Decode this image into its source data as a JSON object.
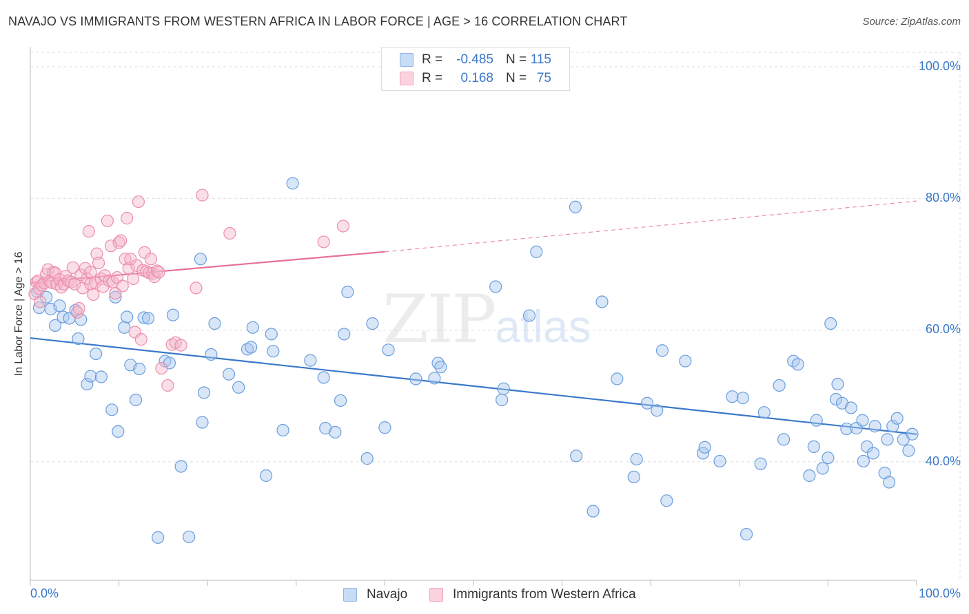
{
  "header": {
    "title": "NAVAJO VS IMMIGRANTS FROM WESTERN AFRICA IN LABOR FORCE | AGE > 16 CORRELATION CHART",
    "source": "Source: ZipAtlas.com"
  },
  "watermark": {
    "zip": "ZIP",
    "atlas": "atlas"
  },
  "stats": {
    "rows": [
      {
        "r_label": "R =",
        "r_value": "-0.485",
        "n_label": "N =",
        "n_value": "115",
        "color": "#a9c8ee"
      },
      {
        "r_label": "R =",
        "r_value": "0.168",
        "n_label": "N =",
        "n_value": "75",
        "color": "#f5b8cb"
      }
    ]
  },
  "legend": {
    "items": [
      {
        "label": "Navajo",
        "color": "#a9c8ee"
      },
      {
        "label": "Immigrants from Western Africa",
        "color": "#f5b8cb"
      }
    ]
  },
  "colors": {
    "blue": "#3a78c9",
    "blue_fill": "#a9c8ee",
    "pink": "#e8709a",
    "pink_fill": "#f5b8cb",
    "accent_text": "#3a78c9"
  },
  "chart_data": {
    "type": "scatter",
    "title": "NAVAJO VS IMMIGRANTS FROM WESTERN AFRICA IN LABOR FORCE | AGE > 16 CORRELATION CHART",
    "xlabel": "",
    "ylabel": "In Labor Force | Age > 16",
    "xlim": [
      0,
      100
    ],
    "ylim": [
      20,
      102
    ],
    "x_tick_labels": [
      "0.0%",
      "100.0%"
    ],
    "y_ticks": [
      40,
      60,
      80,
      100
    ],
    "y_tick_labels": [
      "40.0%",
      "60.0%",
      "80.0%",
      "100.0%"
    ],
    "grid": true,
    "series": [
      {
        "name": "Navajo",
        "color": "#3a78c9",
        "trend": {
          "x": [
            0,
            100
          ],
          "y": [
            58.8,
            44.2
          ],
          "dashed_from": null
        },
        "points": [
          [
            0.8,
            65.8
          ],
          [
            1.0,
            63.4
          ],
          [
            1.8,
            65.0
          ],
          [
            2.3,
            63.2
          ],
          [
            2.8,
            60.7
          ],
          [
            3.3,
            63.7
          ],
          [
            3.7,
            62.0
          ],
          [
            4.4,
            61.8
          ],
          [
            5.1,
            63.0
          ],
          [
            5.4,
            58.7
          ],
          [
            5.7,
            61.6
          ],
          [
            6.4,
            51.8
          ],
          [
            6.8,
            53.0
          ],
          [
            7.4,
            56.4
          ],
          [
            8.0,
            52.9
          ],
          [
            9.2,
            47.9
          ],
          [
            9.6,
            65.0
          ],
          [
            9.9,
            44.6
          ],
          [
            10.6,
            60.4
          ],
          [
            10.9,
            62.0
          ],
          [
            11.3,
            54.7
          ],
          [
            11.9,
            49.4
          ],
          [
            12.3,
            54.1
          ],
          [
            12.8,
            61.9
          ],
          [
            13.3,
            61.8
          ],
          [
            14.4,
            28.5
          ],
          [
            15.2,
            55.3
          ],
          [
            15.7,
            55.0
          ],
          [
            16.1,
            62.3
          ],
          [
            17.0,
            39.3
          ],
          [
            17.9,
            28.6
          ],
          [
            19.2,
            70.8
          ],
          [
            19.4,
            46.0
          ],
          [
            19.6,
            50.5
          ],
          [
            20.4,
            56.3
          ],
          [
            20.8,
            61.0
          ],
          [
            22.4,
            53.3
          ],
          [
            23.5,
            51.3
          ],
          [
            24.5,
            57.1
          ],
          [
            24.9,
            57.4
          ],
          [
            25.1,
            60.4
          ],
          [
            26.6,
            37.9
          ],
          [
            27.2,
            59.4
          ],
          [
            27.4,
            56.8
          ],
          [
            28.5,
            44.8
          ],
          [
            29.6,
            82.3
          ],
          [
            31.6,
            55.4
          ],
          [
            33.1,
            52.8
          ],
          [
            33.3,
            45.1
          ],
          [
            34.4,
            44.5
          ],
          [
            35.0,
            49.3
          ],
          [
            35.4,
            59.4
          ],
          [
            35.8,
            65.8
          ],
          [
            38.0,
            40.5
          ],
          [
            38.6,
            61.0
          ],
          [
            40.0,
            45.2
          ],
          [
            40.4,
            57.0
          ],
          [
            43.5,
            52.6
          ],
          [
            45.6,
            52.7
          ],
          [
            46.0,
            55.0
          ],
          [
            46.3,
            54.4
          ],
          [
            52.5,
            66.6
          ],
          [
            53.2,
            49.4
          ],
          [
            53.4,
            51.1
          ],
          [
            56.3,
            62.2
          ],
          [
            57.1,
            71.9
          ],
          [
            61.5,
            78.7
          ],
          [
            61.6,
            40.9
          ],
          [
            63.5,
            32.5
          ],
          [
            64.5,
            64.3
          ],
          [
            66.2,
            52.6
          ],
          [
            68.1,
            37.7
          ],
          [
            68.4,
            40.4
          ],
          [
            69.6,
            48.9
          ],
          [
            70.7,
            47.8
          ],
          [
            71.3,
            56.9
          ],
          [
            71.8,
            34.1
          ],
          [
            73.9,
            55.3
          ],
          [
            75.9,
            41.3
          ],
          [
            77.8,
            40.1
          ],
          [
            79.2,
            49.9
          ],
          [
            80.4,
            49.7
          ],
          [
            80.8,
            29.0
          ],
          [
            82.4,
            39.7
          ],
          [
            82.8,
            47.5
          ],
          [
            84.5,
            51.6
          ],
          [
            85.0,
            43.4
          ],
          [
            86.1,
            55.3
          ],
          [
            86.6,
            54.8
          ],
          [
            87.9,
            37.9
          ],
          [
            88.4,
            42.3
          ],
          [
            88.7,
            46.3
          ],
          [
            89.4,
            39.0
          ],
          [
            90.0,
            40.6
          ],
          [
            90.3,
            61.0
          ],
          [
            90.9,
            49.5
          ],
          [
            91.1,
            51.8
          ],
          [
            91.6,
            48.9
          ],
          [
            92.1,
            45.0
          ],
          [
            92.6,
            48.2
          ],
          [
            93.2,
            45.1
          ],
          [
            93.9,
            46.3
          ],
          [
            94.0,
            40.1
          ],
          [
            94.4,
            42.3
          ],
          [
            95.1,
            41.3
          ],
          [
            95.3,
            45.4
          ],
          [
            96.4,
            38.3
          ],
          [
            96.7,
            43.4
          ],
          [
            96.9,
            36.9
          ],
          [
            97.3,
            45.4
          ],
          [
            97.8,
            46.6
          ],
          [
            98.5,
            43.4
          ],
          [
            99.1,
            41.7
          ],
          [
            99.5,
            44.2
          ],
          [
            76.1,
            42.2
          ]
        ]
      },
      {
        "name": "Immigrants from Western Africa",
        "color": "#e8709a",
        "trend": {
          "x": [
            0,
            40,
            100
          ],
          "y": [
            67.2,
            71.9,
            79.6
          ],
          "dashed_from": 40
        },
        "points": [
          [
            0.5,
            65.5
          ],
          [
            0.7,
            67.3
          ],
          [
            0.9,
            67.5
          ],
          [
            1.0,
            66.3
          ],
          [
            1.1,
            64.3
          ],
          [
            1.3,
            66.8
          ],
          [
            1.6,
            67.2
          ],
          [
            1.8,
            68.5
          ],
          [
            2.0,
            69.2
          ],
          [
            2.2,
            67.4
          ],
          [
            2.4,
            67.2
          ],
          [
            2.6,
            68.8
          ],
          [
            2.8,
            68.7
          ],
          [
            3.0,
            67.0
          ],
          [
            3.3,
            67.7
          ],
          [
            3.5,
            66.5
          ],
          [
            3.8,
            67.0
          ],
          [
            4.0,
            68.2
          ],
          [
            4.3,
            67.5
          ],
          [
            4.6,
            67.3
          ],
          [
            4.8,
            69.5
          ],
          [
            5.0,
            67.0
          ],
          [
            5.3,
            62.7
          ],
          [
            5.5,
            63.3
          ],
          [
            5.7,
            68.4
          ],
          [
            5.9,
            66.4
          ],
          [
            6.2,
            69.4
          ],
          [
            6.4,
            67.8
          ],
          [
            6.6,
            75.0
          ],
          [
            6.8,
            67.0
          ],
          [
            7.1,
            65.4
          ],
          [
            7.3,
            67.2
          ],
          [
            7.5,
            71.6
          ],
          [
            7.7,
            70.2
          ],
          [
            8.0,
            67.8
          ],
          [
            8.2,
            66.6
          ],
          [
            8.4,
            68.3
          ],
          [
            8.7,
            76.6
          ],
          [
            8.9,
            67.5
          ],
          [
            9.1,
            72.8
          ],
          [
            9.3,
            67.3
          ],
          [
            9.6,
            65.6
          ],
          [
            9.8,
            68.0
          ],
          [
            10.0,
            73.3
          ],
          [
            10.2,
            73.6
          ],
          [
            10.4,
            66.7
          ],
          [
            10.7,
            70.8
          ],
          [
            10.9,
            77.0
          ],
          [
            11.1,
            69.4
          ],
          [
            11.3,
            70.8
          ],
          [
            11.6,
            67.8
          ],
          [
            11.8,
            59.7
          ],
          [
            12.0,
            69.8
          ],
          [
            12.2,
            79.5
          ],
          [
            12.5,
            58.6
          ],
          [
            12.7,
            69.1
          ],
          [
            12.9,
            71.8
          ],
          [
            13.1,
            68.9
          ],
          [
            13.4,
            68.7
          ],
          [
            13.6,
            70.8
          ],
          [
            13.8,
            68.6
          ],
          [
            14.0,
            68.1
          ],
          [
            14.3,
            69.0
          ],
          [
            14.5,
            68.8
          ],
          [
            14.8,
            54.2
          ],
          [
            15.5,
            51.6
          ],
          [
            16.0,
            57.8
          ],
          [
            16.4,
            58.1
          ],
          [
            17.0,
            57.7
          ],
          [
            18.7,
            66.4
          ],
          [
            19.4,
            80.5
          ],
          [
            22.5,
            74.7
          ],
          [
            33.1,
            73.4
          ],
          [
            35.3,
            75.8
          ],
          [
            6.8,
            68.8
          ]
        ]
      }
    ]
  },
  "axes": {
    "x_left_label": "0.0%",
    "x_right_label": "100.0%",
    "y_label": "In Labor Force | Age > 16"
  }
}
